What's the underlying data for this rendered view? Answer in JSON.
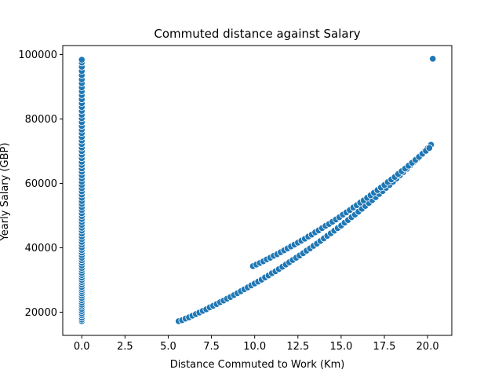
{
  "chart_data": {
    "type": "scatter",
    "title": "Commuted distance against Salary",
    "xlabel": "Distance Commuted to Work (Km)",
    "ylabel": "Yearly Salary (GBP)",
    "xlim": [
      -1.1,
      21.4
    ],
    "ylim": [
      12800,
      102800
    ],
    "xticks": [
      0.0,
      2.5,
      5.0,
      7.5,
      10.0,
      12.5,
      15.0,
      17.5,
      20.0
    ],
    "xtick_labels": [
      "0.0",
      "2.5",
      "5.0",
      "7.5",
      "10.0",
      "12.5",
      "15.0",
      "17.5",
      "20.0"
    ],
    "yticks": [
      20000,
      40000,
      60000,
      80000,
      100000
    ],
    "ytick_labels": [
      "20000",
      "40000",
      "60000",
      "80000",
      "100000"
    ],
    "grid": false,
    "marker_color": "#1f77b4",
    "marker_edge_color": "#ffffff",
    "series": [
      {
        "points": [
          [
            0,
            17200
          ],
          [
            0,
            17700
          ],
          [
            0,
            18300
          ],
          [
            0,
            19000
          ],
          [
            0,
            19600
          ],
          [
            0,
            20300
          ],
          [
            0,
            21000
          ],
          [
            0,
            21700
          ],
          [
            0,
            22300
          ],
          [
            0,
            23000
          ],
          [
            0,
            23700
          ],
          [
            0,
            24400
          ],
          [
            0,
            25100
          ],
          [
            0,
            25800
          ],
          [
            0,
            26500
          ],
          [
            0,
            27100
          ],
          [
            0,
            27800
          ],
          [
            0,
            28600
          ],
          [
            0,
            29300
          ],
          [
            0,
            30000
          ],
          [
            0,
            30700
          ],
          [
            0,
            31500
          ],
          [
            0,
            32200
          ],
          [
            0,
            33000
          ],
          [
            0,
            33700
          ],
          [
            0,
            34500
          ],
          [
            0,
            35300
          ],
          [
            0,
            36100
          ],
          [
            0,
            36900
          ],
          [
            0,
            37700
          ],
          [
            0,
            38500
          ],
          [
            0,
            39300
          ],
          [
            0,
            40100
          ],
          [
            0,
            41000
          ],
          [
            0,
            41800
          ],
          [
            0,
            42700
          ],
          [
            0,
            43500
          ],
          [
            0,
            44400
          ],
          [
            0,
            45300
          ],
          [
            0,
            46200
          ],
          [
            0,
            47100
          ],
          [
            0,
            48000
          ],
          [
            0,
            48900
          ],
          [
            0,
            49800
          ],
          [
            0,
            50700
          ],
          [
            0,
            51700
          ],
          [
            0,
            52600
          ],
          [
            0,
            53600
          ],
          [
            0,
            54500
          ],
          [
            0,
            55500
          ],
          [
            0,
            56500
          ],
          [
            0,
            57500
          ],
          [
            0,
            58500
          ],
          [
            0,
            59500
          ],
          [
            0,
            60500
          ],
          [
            0,
            61500
          ],
          [
            0,
            62500
          ],
          [
            0,
            63600
          ],
          [
            0,
            64600
          ],
          [
            0,
            65700
          ],
          [
            0,
            66700
          ],
          [
            0,
            67800
          ],
          [
            0,
            68900
          ],
          [
            0,
            70000
          ],
          [
            0,
            71100
          ],
          [
            0,
            72200
          ],
          [
            0,
            73300
          ],
          [
            0,
            74400
          ],
          [
            0,
            75600
          ],
          [
            0,
            76700
          ],
          [
            0,
            77800
          ],
          [
            0,
            79000
          ],
          [
            0,
            80200
          ],
          [
            0,
            81300
          ],
          [
            0,
            82500
          ],
          [
            0,
            83700
          ],
          [
            0,
            84900
          ],
          [
            0,
            86100
          ],
          [
            0,
            87400
          ],
          [
            0,
            88600
          ],
          [
            0,
            89800
          ],
          [
            0,
            91100
          ],
          [
            0,
            92300
          ],
          [
            0,
            93600
          ],
          [
            0,
            94900
          ],
          [
            0,
            96200
          ],
          [
            0,
            97500
          ],
          [
            0,
            98400
          ],
          [
            5.6,
            17200
          ],
          [
            5.8,
            17500
          ],
          [
            6.0,
            18000
          ],
          [
            6.2,
            18400
          ],
          [
            6.4,
            18900
          ],
          [
            6.6,
            19400
          ],
          [
            6.8,
            19900
          ],
          [
            7.0,
            20400
          ],
          [
            7.2,
            20900
          ],
          [
            7.4,
            21500
          ],
          [
            7.6,
            22000
          ],
          [
            7.8,
            22500
          ],
          [
            8.0,
            23100
          ],
          [
            8.2,
            23600
          ],
          [
            8.4,
            24200
          ],
          [
            8.6,
            24700
          ],
          [
            8.8,
            25300
          ],
          [
            9.0,
            25900
          ],
          [
            9.2,
            26500
          ],
          [
            9.4,
            27100
          ],
          [
            9.6,
            27700
          ],
          [
            9.8,
            28300
          ],
          [
            10.0,
            28900
          ],
          [
            10.2,
            29500
          ],
          [
            10.4,
            30100
          ],
          [
            10.6,
            30800
          ],
          [
            10.8,
            31400
          ],
          [
            11.0,
            32100
          ],
          [
            11.2,
            32700
          ],
          [
            11.4,
            33400
          ],
          [
            11.6,
            34100
          ],
          [
            11.8,
            34800
          ],
          [
            12.0,
            35500
          ],
          [
            12.2,
            36200
          ],
          [
            12.4,
            36900
          ],
          [
            12.6,
            37600
          ],
          [
            12.8,
            38300
          ],
          [
            13.0,
            39100
          ],
          [
            13.2,
            39800
          ],
          [
            13.4,
            40600
          ],
          [
            13.6,
            41300
          ],
          [
            13.8,
            42100
          ],
          [
            14.0,
            42900
          ],
          [
            14.2,
            43700
          ],
          [
            14.4,
            44500
          ],
          [
            14.6,
            45300
          ],
          [
            14.8,
            46100
          ],
          [
            15.0,
            46900
          ],
          [
            15.2,
            47800
          ],
          [
            15.4,
            48600
          ],
          [
            15.6,
            49500
          ],
          [
            15.8,
            50300
          ],
          [
            16.0,
            51200
          ],
          [
            16.2,
            52100
          ],
          [
            16.4,
            53000
          ],
          [
            16.6,
            53900
          ],
          [
            16.8,
            54800
          ],
          [
            17.0,
            55700
          ],
          [
            17.2,
            56700
          ],
          [
            17.4,
            57600
          ],
          [
            17.6,
            58600
          ],
          [
            17.8,
            59500
          ],
          [
            18.0,
            60500
          ],
          [
            18.2,
            61500
          ],
          [
            18.4,
            62500
          ],
          [
            18.6,
            63500
          ],
          [
            18.8,
            64500
          ],
          [
            19.0,
            65600
          ],
          [
            19.2,
            66600
          ],
          [
            19.4,
            67600
          ],
          [
            19.6,
            68700
          ],
          [
            19.8,
            69800
          ],
          [
            20.0,
            70900
          ],
          [
            20.2,
            72000
          ],
          [
            20.3,
            98700
          ],
          [
            9.9,
            34300
          ],
          [
            10.1,
            34800
          ],
          [
            10.3,
            35300
          ],
          [
            10.5,
            35800
          ],
          [
            10.7,
            36400
          ],
          [
            10.9,
            36900
          ],
          [
            11.1,
            37500
          ],
          [
            11.3,
            38000
          ],
          [
            11.5,
            38600
          ],
          [
            11.7,
            39200
          ],
          [
            11.9,
            39800
          ],
          [
            12.1,
            40400
          ],
          [
            12.3,
            41000
          ],
          [
            12.5,
            41600
          ],
          [
            12.7,
            42200
          ],
          [
            12.9,
            42800
          ],
          [
            13.1,
            43500
          ],
          [
            13.3,
            44100
          ],
          [
            13.5,
            44800
          ],
          [
            13.7,
            45400
          ],
          [
            13.9,
            46100
          ],
          [
            14.1,
            46800
          ],
          [
            14.3,
            47400
          ],
          [
            14.5,
            48100
          ],
          [
            14.7,
            48800
          ],
          [
            14.9,
            49500
          ],
          [
            15.1,
            50300
          ],
          [
            15.3,
            51000
          ],
          [
            15.5,
            51700
          ],
          [
            15.7,
            52500
          ],
          [
            15.9,
            53200
          ],
          [
            16.1,
            54000
          ],
          [
            16.3,
            54700
          ],
          [
            16.5,
            55500
          ],
          [
            16.7,
            56300
          ],
          [
            16.9,
            57100
          ],
          [
            17.1,
            57900
          ],
          [
            17.3,
            58700
          ],
          [
            17.5,
            59500
          ],
          [
            17.7,
            60400
          ],
          [
            17.9,
            61200
          ],
          [
            18.1,
            62000
          ],
          [
            18.3,
            62900
          ],
          [
            18.5,
            63800
          ],
          [
            18.7,
            64600
          ],
          [
            18.9,
            65500
          ],
          [
            19.1,
            66400
          ],
          [
            19.3,
            67300
          ],
          [
            19.5,
            68200
          ],
          [
            19.7,
            69200
          ],
          [
            19.9,
            70100
          ],
          [
            20.1,
            71000
          ]
        ]
      }
    ]
  }
}
